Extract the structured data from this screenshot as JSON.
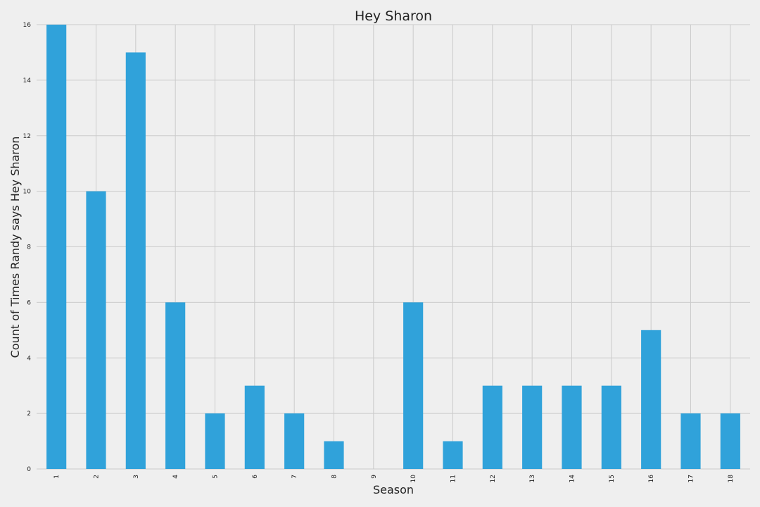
{
  "chart_data": {
    "type": "bar",
    "title": "Hey Sharon",
    "xlabel": "Season",
    "ylabel": "Count of Times Randy says Hey Sharon",
    "categories": [
      "1",
      "2",
      "3",
      "4",
      "5",
      "6",
      "7",
      "8",
      "9",
      "10",
      "11",
      "12",
      "13",
      "14",
      "15",
      "16",
      "17",
      "18"
    ],
    "values": [
      16,
      10,
      15,
      6,
      2,
      3,
      2,
      1,
      0,
      6,
      1,
      3,
      3,
      3,
      3,
      5,
      2,
      2
    ],
    "ylim": [
      0,
      16
    ],
    "yticks": [
      "0",
      "2",
      "4",
      "6",
      "8",
      "10",
      "12",
      "14",
      "16"
    ],
    "grid": true,
    "bar_color": "#30a2da",
    "background_color": "#efefef",
    "grid_color": "#cbcbcb"
  }
}
